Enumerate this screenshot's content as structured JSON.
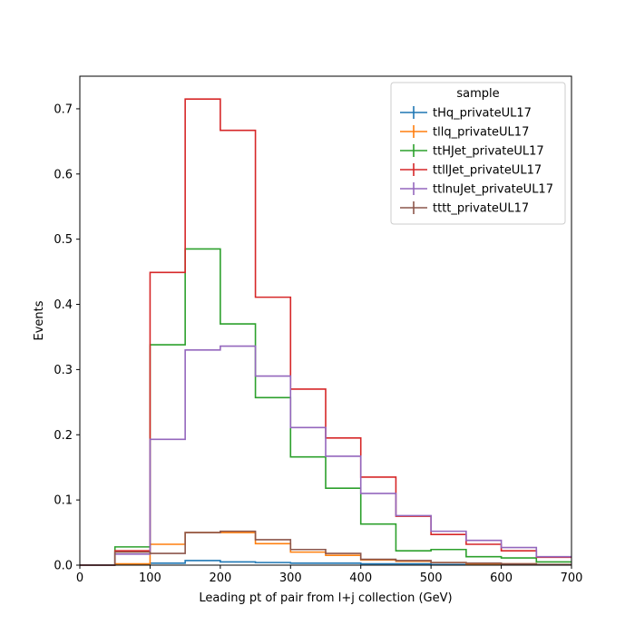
{
  "chart_data": {
    "type": "histogram-step",
    "xlabel": "Leading pt of pair from l+j collection (GeV)",
    "ylabel": "Events",
    "xlim": [
      0,
      700
    ],
    "ylim": [
      0,
      0.75
    ],
    "xticks": [
      0,
      100,
      200,
      300,
      400,
      500,
      600,
      700
    ],
    "yticks": [
      0.0,
      0.1,
      0.2,
      0.3,
      0.4,
      0.5,
      0.6,
      0.7
    ],
    "bin_edges": [
      0,
      50,
      100,
      150,
      200,
      250,
      300,
      350,
      400,
      450,
      500,
      550,
      600,
      650,
      700
    ],
    "grid": false,
    "legend": {
      "title": "sample",
      "placement": "top-right"
    },
    "series": [
      {
        "name": "tHq_privateUL17",
        "color": "#1f77b4",
        "values": [
          0.0,
          0.001,
          0.003,
          0.007,
          0.005,
          0.004,
          0.003,
          0.003,
          0.002,
          0.002,
          0.001,
          0.001,
          0.001,
          0.001
        ]
      },
      {
        "name": "tllq_privateUL17",
        "color": "#ff7f0e",
        "values": [
          0.0,
          0.002,
          0.032,
          0.05,
          0.05,
          0.033,
          0.02,
          0.015,
          0.008,
          0.006,
          0.004,
          0.002,
          0.002,
          0.001
        ]
      },
      {
        "name": "ttHJet_privateUL17",
        "color": "#2ca02c",
        "values": [
          0.0,
          0.028,
          0.338,
          0.485,
          0.37,
          0.257,
          0.166,
          0.118,
          0.063,
          0.022,
          0.024,
          0.013,
          0.011,
          0.005
        ]
      },
      {
        "name": "ttllJet_privateUL17",
        "color": "#d62728",
        "values": [
          0.0,
          0.022,
          0.449,
          0.715,
          0.667,
          0.411,
          0.27,
          0.195,
          0.135,
          0.075,
          0.047,
          0.032,
          0.022,
          0.012
        ]
      },
      {
        "name": "ttlnuJet_privateUL17",
        "color": "#9467bd",
        "values": [
          0.0,
          0.017,
          0.193,
          0.33,
          0.336,
          0.29,
          0.211,
          0.167,
          0.11,
          0.076,
          0.052,
          0.038,
          0.027,
          0.013
        ]
      },
      {
        "name": "tttt_privateUL17",
        "color": "#8c564b",
        "values": [
          0.0,
          0.02,
          0.018,
          0.05,
          0.052,
          0.039,
          0.024,
          0.018,
          0.009,
          0.007,
          0.004,
          0.003,
          0.002,
          0.001
        ]
      }
    ]
  }
}
